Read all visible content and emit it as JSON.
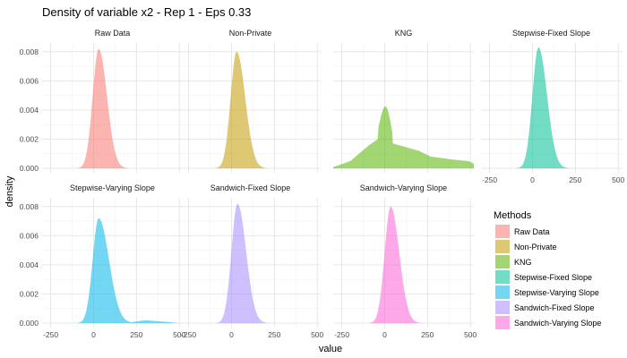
{
  "chart_data": {
    "type": "area",
    "title": "Density of variable x2 - Rep 1 - Eps 0.33",
    "xlabel": "value",
    "ylabel": "density",
    "xlim": [
      -300,
      520
    ],
    "ylim": [
      -0.0003,
      0.0086
    ],
    "x_ticks": [
      -250,
      0,
      250,
      500
    ],
    "y_ticks": [
      0.0,
      0.002,
      0.004,
      0.006,
      0.008
    ],
    "y_tick_labels": [
      "0.000",
      "0.002",
      "0.004",
      "0.006",
      "0.008"
    ],
    "legend": {
      "title": "Methods",
      "position": "right"
    },
    "series": [
      {
        "name": "Raw Data",
        "color": "#F8766D",
        "peak_x": 30,
        "peak_density": 0.0082,
        "left_sigma": 35,
        "right_sigma": 48,
        "tail": [],
        "points": [
          [
            -120,
            0.0
          ],
          [
            -60,
            0.0003
          ],
          [
            0,
            0.0055
          ],
          [
            30,
            0.0082
          ],
          [
            60,
            0.0065
          ],
          [
            100,
            0.0022
          ],
          [
            150,
            0.0004
          ],
          [
            180,
            0.0
          ]
        ]
      },
      {
        "name": "Non-Private",
        "color": "#C49A00",
        "peak_x": 30,
        "peak_density": 0.008,
        "left_sigma": 35,
        "right_sigma": 50,
        "tail": [],
        "points": [
          [
            -120,
            0.0
          ],
          [
            -60,
            0.0003
          ],
          [
            0,
            0.0054
          ],
          [
            30,
            0.008
          ],
          [
            60,
            0.0064
          ],
          [
            100,
            0.0022
          ],
          [
            150,
            0.0004
          ],
          [
            190,
            0.0
          ]
        ]
      },
      {
        "name": "KNG",
        "color": "#53B400",
        "peak_x": 5,
        "peak_density": 0.0036,
        "left_sigma": 40,
        "right_sigma": 35,
        "tail": [
          [
            -200,
            0.0005
          ],
          [
            -90,
            0.0016
          ],
          [
            -40,
            0.002
          ],
          [
            200,
            0.0012
          ],
          [
            270,
            0.0008
          ],
          [
            400,
            0.0006
          ],
          [
            490,
            0.0005
          ]
        ],
        "points": [
          [
            -300,
            0.0005
          ],
          [
            -200,
            0.0011
          ],
          [
            -100,
            0.0022
          ],
          [
            0,
            0.0036
          ],
          [
            60,
            0.0024
          ],
          [
            150,
            0.0012
          ],
          [
            270,
            0.0011
          ],
          [
            400,
            0.0004
          ],
          [
            500,
            0.0005
          ]
        ]
      },
      {
        "name": "Stepwise-Fixed Slope",
        "color": "#00C094",
        "peak_x": 35,
        "peak_density": 0.0083,
        "left_sigma": 35,
        "right_sigma": 50,
        "tail": [],
        "points": [
          [
            -120,
            0.0
          ],
          [
            -60,
            0.0003
          ],
          [
            0,
            0.0056
          ],
          [
            35,
            0.0083
          ],
          [
            70,
            0.0062
          ],
          [
            110,
            0.002
          ],
          [
            160,
            0.0004
          ],
          [
            200,
            0.0
          ]
        ]
      },
      {
        "name": "Stepwise-Varying Slope",
        "color": "#00B6EB",
        "peak_x": 30,
        "peak_density": 0.0072,
        "left_sigma": 35,
        "right_sigma": 60,
        "tail": [
          [
            300,
            0.0002
          ],
          [
            420,
            0.0001
          ]
        ],
        "points": [
          [
            -120,
            0.0
          ],
          [
            -60,
            0.0003
          ],
          [
            0,
            0.0048
          ],
          [
            30,
            0.0072
          ],
          [
            70,
            0.0055
          ],
          [
            120,
            0.002
          ],
          [
            200,
            0.0006
          ],
          [
            300,
            0.0002
          ],
          [
            460,
            0.0
          ]
        ]
      },
      {
        "name": "Sandwich-Fixed Slope",
        "color": "#A58AFF",
        "peak_x": 35,
        "peak_density": 0.0082,
        "left_sigma": 35,
        "right_sigma": 50,
        "tail": [],
        "points": [
          [
            -120,
            0.0
          ],
          [
            -60,
            0.0003
          ],
          [
            0,
            0.0055
          ],
          [
            35,
            0.0082
          ],
          [
            70,
            0.0062
          ],
          [
            110,
            0.002
          ],
          [
            160,
            0.0004
          ],
          [
            200,
            0.0
          ]
        ]
      },
      {
        "name": "Sandwich-Varying Slope",
        "color": "#FB61D7",
        "peak_x": 35,
        "peak_density": 0.008,
        "left_sigma": 35,
        "right_sigma": 50,
        "tail": [],
        "points": [
          [
            -120,
            0.0
          ],
          [
            -60,
            0.0003
          ],
          [
            0,
            0.0054
          ],
          [
            35,
            0.008
          ],
          [
            70,
            0.0061
          ],
          [
            110,
            0.002
          ],
          [
            160,
            0.0004
          ],
          [
            200,
            0.0
          ]
        ]
      }
    ]
  }
}
